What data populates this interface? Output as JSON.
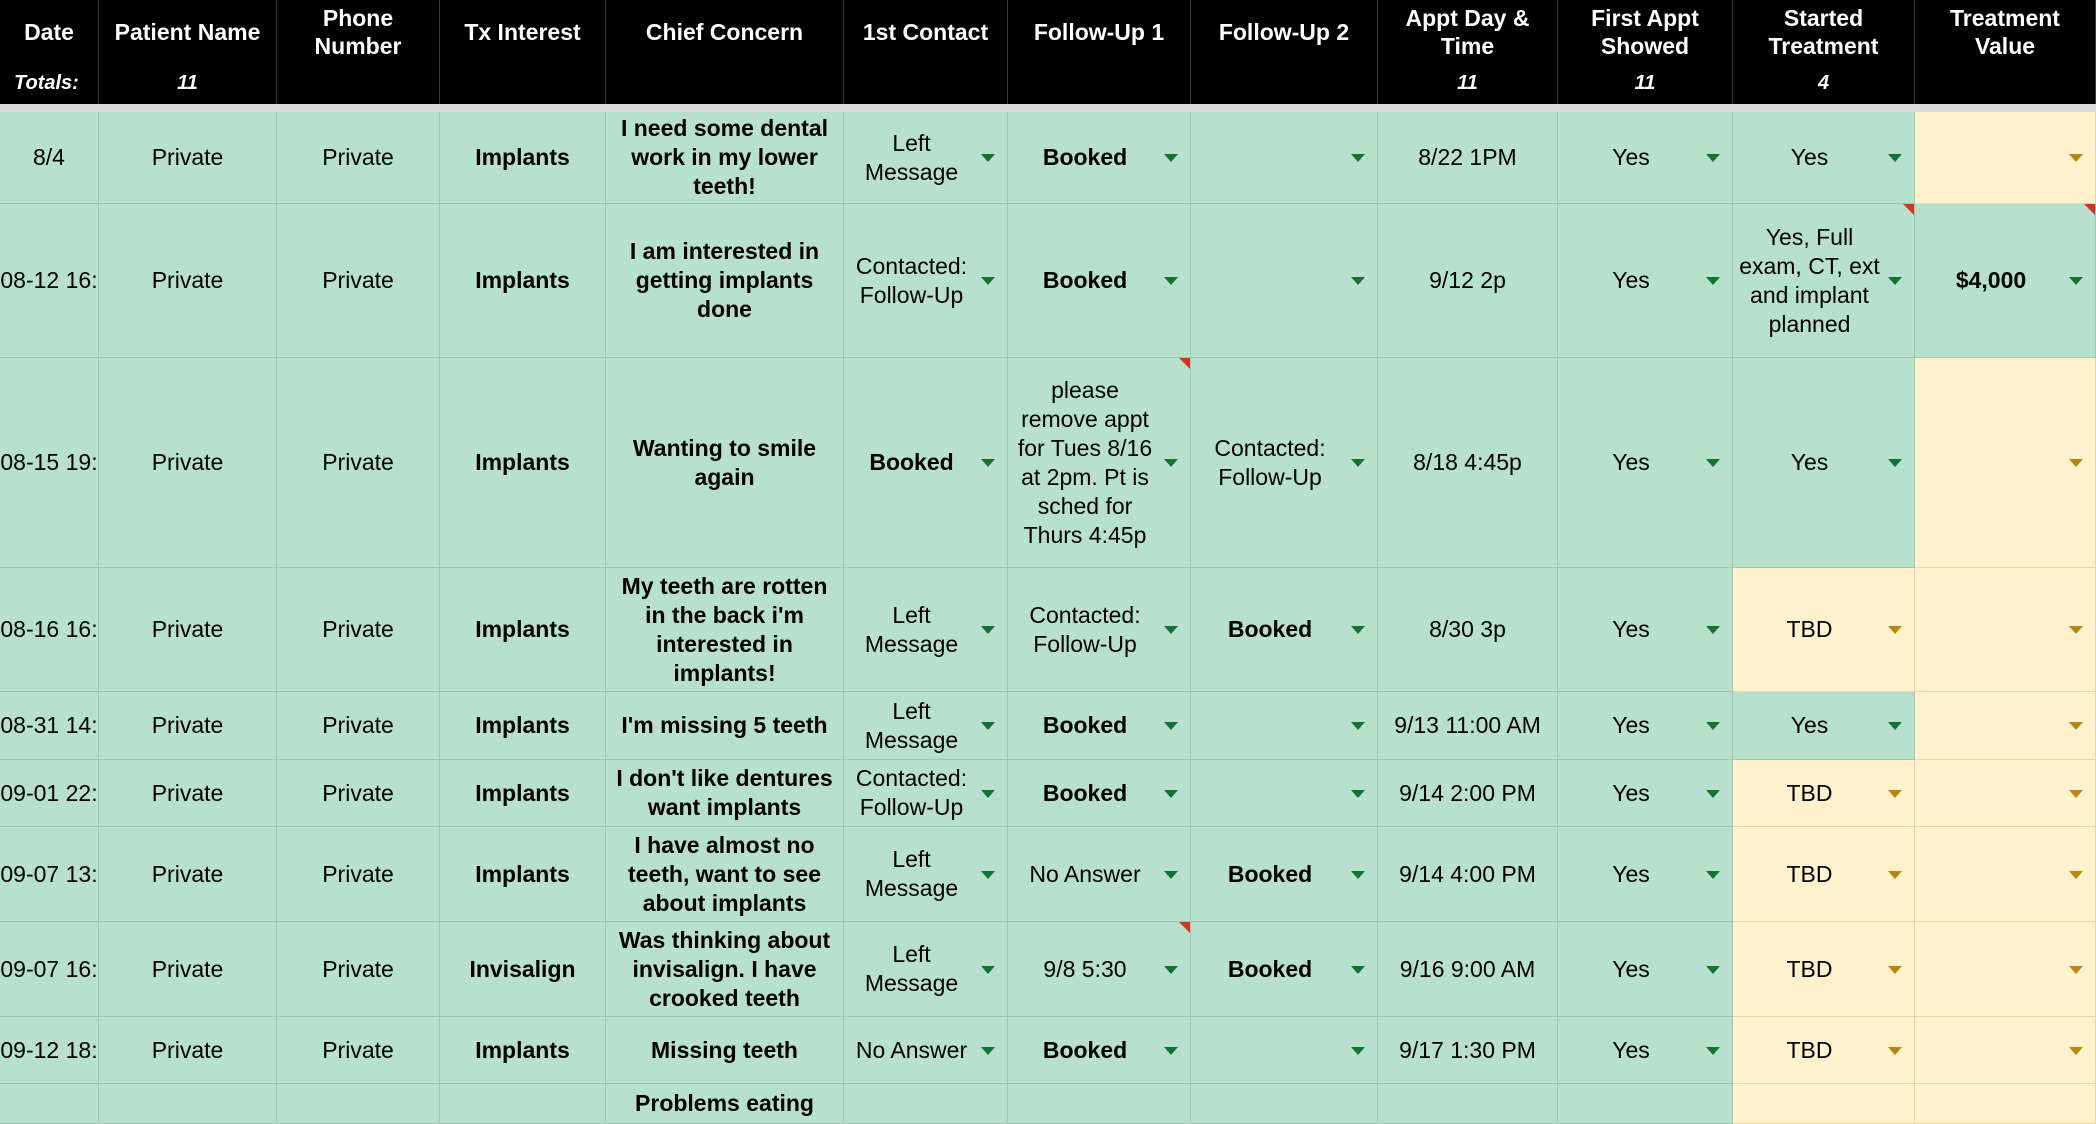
{
  "header": {
    "columns": [
      "Date",
      "Patient Name",
      "Phone Number",
      "Tx Interest",
      "Chief Concern",
      "1st Contact",
      "Follow-Up 1",
      "Follow-Up 2",
      "Appt Day & Time",
      "First Appt Showed",
      "Started Treatment",
      "Treatment Value"
    ]
  },
  "totals": {
    "label": "Totals:",
    "values": [
      null,
      "11",
      null,
      null,
      null,
      null,
      null,
      null,
      "11",
      "11",
      "4",
      null
    ]
  },
  "table": {
    "rows": [
      [
        "8/4",
        "Private",
        "Private",
        "Implants",
        "I need some dental work in my lower teeth!",
        "Left Message",
        "Booked",
        null,
        "8/22 1PM",
        "Yes",
        "Yes",
        null
      ],
      [
        "08-12 16:",
        "Private",
        "Private",
        "Implants",
        "I am interested in getting implants done",
        "Contacted: Follow-Up",
        "Booked",
        null,
        "9/12 2p",
        "Yes",
        "Yes, Full exam, CT, ext and implant planned",
        "$4,000"
      ],
      [
        "08-15 19:",
        "Private",
        "Private",
        "Implants",
        "Wanting to smile again",
        "Booked",
        "please remove appt for Tues 8/16 at 2pm. Pt is sched for Thurs 4:45p",
        "Contacted: Follow-Up",
        "8/18 4:45p",
        "Yes",
        "Yes",
        null
      ],
      [
        "08-16 16:",
        "Private",
        "Private",
        "Implants",
        "My teeth are rotten in the back i'm interested in implants!",
        "Left Message",
        "Contacted: Follow-Up",
        "Booked",
        "8/30 3p",
        "Yes",
        "TBD",
        null
      ],
      [
        "08-31 14:",
        "Private",
        "Private",
        "Implants",
        "I'm missing 5 teeth",
        "Left Message",
        "Booked",
        null,
        "9/13 11:00 AM",
        "Yes",
        "Yes",
        null
      ],
      [
        "09-01 22:",
        "Private",
        "Private",
        "Implants",
        "I don't like dentures want implants",
        "Contacted: Follow-Up",
        "Booked",
        null,
        "9/14 2:00 PM",
        "Yes",
        "TBD",
        null
      ],
      [
        "09-07 13:",
        "Private",
        "Private",
        "Implants",
        "I have almost no teeth, want to see about implants",
        "Left Message",
        "No Answer",
        "Booked",
        "9/14 4:00 PM",
        "Yes",
        "TBD",
        null
      ],
      [
        "09-07 16:",
        "Private",
        "Private",
        "Invisalign",
        "Was thinking about invisalign. I have crooked teeth",
        "Left Message",
        "9/8 5:30",
        "Booked",
        "9/16 9:00 AM",
        "Yes",
        "TBD",
        null
      ],
      [
        "09-12 18:",
        "Private",
        "Private",
        "Implants",
        "Missing teeth",
        "No Answer",
        "Booked",
        null,
        "9/17 1:30 PM",
        "Yes",
        "TBD",
        null
      ],
      [
        null,
        null,
        null,
        null,
        "Problems eating",
        null,
        null,
        null,
        null,
        null,
        null,
        null
      ]
    ]
  }
}
